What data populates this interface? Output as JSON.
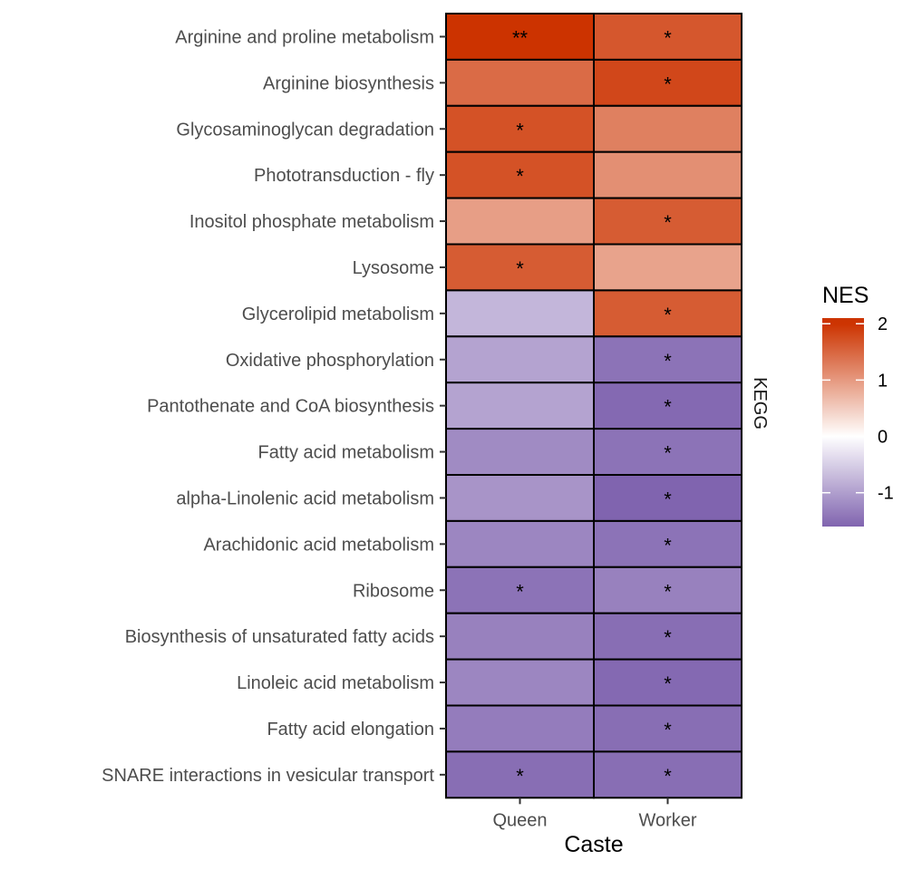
{
  "chart_data": {
    "type": "heatmap",
    "title": "",
    "xlabel": "Caste",
    "ylabel": "",
    "facet_label": "KEGG",
    "x_categories": [
      "Queen",
      "Worker"
    ],
    "y_categories": [
      "Arginine and proline metabolism",
      "Arginine biosynthesis",
      "Glycosaminoglycan degradation",
      "Phototransduction - fly",
      "Inositol phosphate metabolism",
      "Lysosome",
      "Glycerolipid metabolism",
      "Oxidative phosphorylation",
      "Pantothenate and CoA biosynthesis",
      "Fatty acid metabolism",
      "alpha-Linolenic acid metabolism",
      "Arachidonic acid metabolism",
      "Ribosome",
      "Biosynthesis of unsaturated fatty acids",
      "Linoleic acid metabolism",
      "Fatty acid elongation",
      "SNARE interactions in vesicular transport"
    ],
    "values": [
      [
        2.05,
        1.65
      ],
      [
        1.45,
        1.8
      ],
      [
        1.7,
        1.25
      ],
      [
        1.7,
        1.1
      ],
      [
        0.95,
        1.6
      ],
      [
        1.6,
        0.9
      ],
      [
        -0.75,
        1.6
      ],
      [
        -0.95,
        -1.45
      ],
      [
        -0.95,
        -1.55
      ],
      [
        -1.2,
        -1.45
      ],
      [
        -1.1,
        -1.6
      ],
      [
        -1.25,
        -1.45
      ],
      [
        -1.45,
        -1.3
      ],
      [
        -1.3,
        -1.5
      ],
      [
        -1.25,
        -1.55
      ],
      [
        -1.35,
        -1.5
      ],
      [
        -1.5,
        -1.5
      ]
    ],
    "significance": [
      [
        "**",
        "*"
      ],
      [
        "",
        "*"
      ],
      [
        "*",
        ""
      ],
      [
        "*",
        ""
      ],
      [
        "",
        "*"
      ],
      [
        "*",
        ""
      ],
      [
        "",
        "*"
      ],
      [
        "",
        "*"
      ],
      [
        "",
        "*"
      ],
      [
        "",
        "*"
      ],
      [
        "",
        "*"
      ],
      [
        "",
        "*"
      ],
      [
        "*",
        "*"
      ],
      [
        "",
        "*"
      ],
      [
        "",
        "*"
      ],
      [
        "",
        "*"
      ],
      [
        "*",
        "*"
      ]
    ],
    "legend": {
      "title": "NES",
      "placement": "right",
      "min": -1.6,
      "max": 2.1,
      "ticks": [
        2,
        1,
        0,
        -1
      ],
      "tick_labels": [
        "2",
        "1",
        "0",
        "-1"
      ]
    },
    "colors": {
      "high": "#CC3300",
      "mid": "#FFFFFF",
      "low": "#8064AF",
      "cell_border": "#000000",
      "tick_color": "#333333"
    },
    "grid": false
  }
}
